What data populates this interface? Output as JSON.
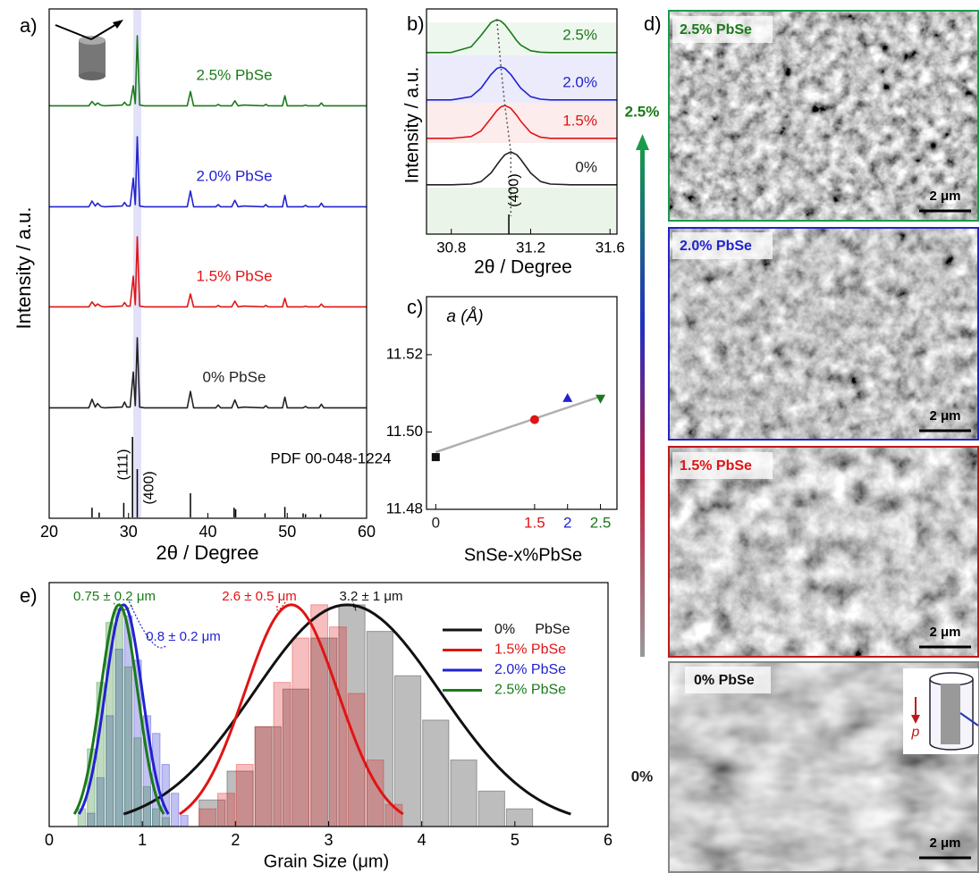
{
  "chart_data": [
    {
      "type": "line",
      "label": "a)",
      "x_label": "2θ / Degree",
      "y_label": "Intensity / a.u.",
      "xlim": [
        20,
        60
      ],
      "xticks": [
        20,
        30,
        40,
        50,
        60
      ],
      "highlight_range": [
        30.6,
        31.6
      ],
      "x": [
        20,
        25,
        25.4,
        25.8,
        26.1,
        26.5,
        26.9,
        29.2,
        29.5,
        29.8,
        30.2,
        30.6,
        30.85,
        31.1,
        31.4,
        32,
        37.4,
        37.8,
        38.2,
        41,
        41.3,
        41.6,
        43,
        43.4,
        43.8,
        44.5,
        47,
        47.3,
        47.6,
        49.4,
        49.7,
        50,
        52,
        52.3,
        52.6,
        54,
        54.3,
        54.6,
        60
      ],
      "series": [
        {
          "name": "2.5% PbSe",
          "color": "#1a7a1a",
          "values": [
            2,
            2,
            8,
            3,
            6,
            3,
            2,
            3,
            7,
            3,
            3,
            30,
            5,
            100,
            3,
            2,
            2,
            22,
            2,
            2,
            4,
            2,
            2,
            9,
            2,
            3,
            2,
            4,
            2,
            2,
            16,
            2,
            2,
            3,
            2,
            2,
            6,
            2,
            2
          ]
        },
        {
          "name": "2.0% PbSe",
          "color": "#2222d0",
          "values": [
            2,
            2,
            10,
            3,
            7,
            3,
            2,
            3,
            8,
            3,
            3,
            42,
            5,
            100,
            3,
            2,
            2,
            24,
            2,
            2,
            5,
            2,
            2,
            11,
            2,
            3,
            2,
            5,
            2,
            2,
            18,
            2,
            2,
            4,
            2,
            2,
            7,
            2,
            2
          ]
        },
        {
          "name": "1.5% PbSe",
          "color": "#e01414",
          "values": [
            2,
            2,
            9,
            3,
            6,
            3,
            2,
            3,
            8,
            3,
            3,
            45,
            5,
            100,
            3,
            2,
            2,
            20,
            2,
            2,
            4,
            2,
            2,
            10,
            2,
            3,
            2,
            4,
            2,
            2,
            14,
            2,
            2,
            3,
            2,
            2,
            6,
            2,
            2
          ]
        },
        {
          "name": "0% PbSe",
          "color": "#222222",
          "values": [
            2,
            2,
            14,
            3,
            8,
            3,
            2,
            3,
            10,
            3,
            3,
            52,
            5,
            100,
            3,
            2,
            2,
            25,
            2,
            2,
            6,
            2,
            2,
            13,
            2,
            3,
            2,
            5,
            2,
            2,
            17,
            2,
            2,
            4,
            2,
            2,
            7,
            2,
            2
          ]
        }
      ],
      "reference": {
        "name": "PDF 00-048-1224",
        "color": "#000000",
        "x": [
          25.4,
          26.3,
          29.4,
          30.5,
          31.1,
          37.8,
          43.3,
          43.5,
          47.2,
          49.7,
          52.0,
          52.3,
          54.2
        ],
        "values": [
          12,
          6,
          18,
          100,
          60,
          30,
          12,
          10,
          5,
          13,
          5,
          4,
          4
        ]
      },
      "peak_labels": [
        {
          "text": "(111)",
          "x": 30.5
        },
        {
          "text": "(400)",
          "x": 31.1
        }
      ]
    },
    {
      "type": "line",
      "label": "b)",
      "x_label": "2θ / Degree",
      "y_label": "Intensity / a.u.",
      "xlim": [
        30.675,
        31.635
      ],
      "xticks": [
        30.8,
        31.2,
        31.6
      ],
      "x": [
        30.675,
        30.8,
        30.9,
        30.95,
        31.0,
        31.03,
        31.05,
        31.07,
        31.1,
        31.13,
        31.15,
        31.2,
        31.25,
        31.3,
        31.4,
        31.5,
        31.635
      ],
      "series": [
        {
          "name": "2.5%",
          "color": "#1a7a1a",
          "values": [
            8,
            8.4,
            24,
            56,
            92,
            100,
            96,
            86,
            64,
            41,
            29,
            13,
            9,
            8,
            8,
            8,
            8
          ]
        },
        {
          "name": "2.0%",
          "color": "#2222d0",
          "values": [
            8,
            8,
            17,
            41,
            79,
            96,
            100,
            96,
            79,
            56,
            41,
            17,
            10,
            8,
            8,
            8,
            8
          ]
        },
        {
          "name": "1.5%",
          "color": "#e01414",
          "values": [
            8,
            8,
            13,
            29,
            64,
            86,
            96,
            100,
            92,
            72,
            56,
            24,
            11,
            8,
            8,
            8,
            8
          ]
        },
        {
          "name": "0%",
          "color": "#222222",
          "values": [
            8,
            8,
            10,
            17,
            41,
            64,
            79,
            92,
            100,
            92,
            79,
            41,
            17,
            10,
            8,
            8,
            8
          ]
        }
      ],
      "peak_labels": [
        {
          "text": "(400)",
          "x": 31.09
        }
      ]
    },
    {
      "type": "scatter",
      "label": "c)",
      "y_label": "a (Å)",
      "x_label": "SnSe-x%PbSe",
      "xlim": [
        -0.14,
        2.75
      ],
      "ylim": [
        11.48,
        11.535
      ],
      "xticks": [
        0,
        1.5,
        2,
        2.5
      ],
      "xtick_colors": [
        "#222222",
        "#e01414",
        "#2222d0",
        "#1a7a1a"
      ],
      "yticks": [
        11.48,
        {
          "value": 11.5,
          "label": "11.50"
        },
        11.52
      ],
      "x": [
        0,
        1.5,
        2,
        2.5
      ],
      "values": [
        11.4935,
        11.5032,
        11.5088,
        11.5086
      ],
      "colors": [
        "#111111",
        "#e01414",
        "#2222d0",
        "#1a7a1a"
      ],
      "markers": [
        "square",
        "circle",
        "triangle-up",
        "triangle-down"
      ],
      "fit": {
        "color": "#b0b0b0",
        "x": [
          0,
          2.5
        ],
        "values": [
          11.4948,
          11.5092
        ]
      }
    },
    {
      "type": "histogram",
      "label": "e)",
      "x_label": "Grain Size (μm)",
      "xlim": [
        0,
        6
      ],
      "xticks": [
        0,
        1,
        2,
        3,
        4,
        5,
        6
      ],
      "ylim": [
        0,
        110
      ],
      "series": [
        {
          "name": "0%     PbSe",
          "color": "#111111",
          "bins": [
            1.6,
            1.9,
            2.2,
            2.5,
            2.8,
            3.1,
            3.4,
            3.7,
            4.0,
            4.3,
            4.6,
            4.9,
            5.2
          ],
          "values": [
            12,
            25,
            45,
            62,
            85,
            100,
            88,
            68,
            48,
            30,
            16,
            8
          ],
          "fit": {
            "mean": 3.2,
            "sd": 1,
            "peak": 100,
            "label": "3.2 ± 1 μm"
          }
        },
        {
          "name": "1.5% PbSe",
          "color": "#e01414",
          "bins": [
            1.6,
            1.8,
            2.0,
            2.2,
            2.4,
            2.6,
            2.8,
            3.0,
            3.2,
            3.4,
            3.6,
            3.8
          ],
          "values": [
            8,
            15,
            28,
            45,
            65,
            85,
            100,
            90,
            60,
            30,
            10
          ],
          "fit": {
            "mean": 2.6,
            "sd": 0.5,
            "peak": 100,
            "label": "2.6 ± 0.5 μm"
          }
        },
        {
          "name": "2.0% PbSe",
          "color": "#2222d0",
          "bins": [
            0.4,
            0.5,
            0.6,
            0.7,
            0.8,
            0.9,
            1.0,
            1.1,
            1.2,
            1.3,
            1.4,
            1.5
          ],
          "values": [
            6,
            22,
            50,
            80,
            95,
            75,
            50,
            42,
            28,
            15,
            5
          ],
          "fit": {
            "mean": 0.8,
            "sd": 0.2,
            "peak": 100,
            "label": "0.8 ± 0.2 μm"
          }
        },
        {
          "name": "2.5% PbSe",
          "color": "#1a7a1a",
          "bins": [
            0.3,
            0.4,
            0.5,
            0.6,
            0.7,
            0.8,
            0.9,
            1.0,
            1.1,
            1.2,
            1.3
          ],
          "values": [
            8,
            35,
            65,
            92,
            98,
            72,
            40,
            18,
            8,
            4
          ],
          "fit": {
            "mean": 0.75,
            "sd": 0.2,
            "peak": 100,
            "label": "0.75 ± 0.2 μm"
          }
        }
      ]
    }
  ],
  "sem": {
    "label": "d)",
    "arrow_top": "2.5%",
    "arrow_bottom": "0%",
    "pressure": "p",
    "panels": [
      {
        "label": "2.5% PbSe",
        "scale_bar": "2 μm"
      },
      {
        "label": "2.0% PbSe",
        "scale_bar": "2 μm"
      },
      {
        "label": "1.5% PbSe",
        "scale_bar": "2 μm"
      },
      {
        "label": "0% PbSe",
        "scale_bar": "2 μm"
      }
    ]
  }
}
